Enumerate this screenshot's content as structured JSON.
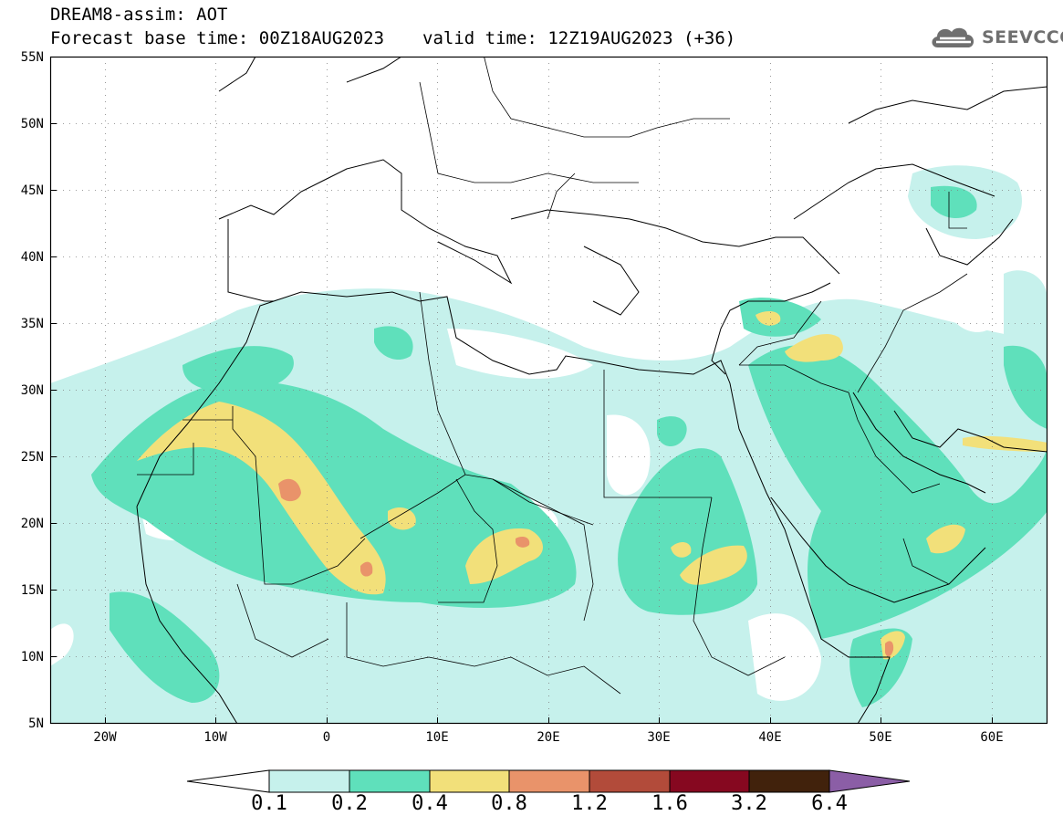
{
  "header": {
    "line1": "DREAM8-assim: AOT",
    "base_time": "Forecast base time: 00Z18AUG2023",
    "valid_time": "valid time: 12Z19AUG2023 (+36)"
  },
  "logo": {
    "text": "SEEVCCC",
    "icon": "cloud-logo-icon"
  },
  "map": {
    "lat_labels": [
      "55N",
      "50N",
      "45N",
      "40N",
      "35N",
      "30N",
      "25N",
      "20N",
      "15N",
      "10N",
      "5N"
    ],
    "lon_labels": [
      "20W",
      "10W",
      "0",
      "10E",
      "20E",
      "30E",
      "40E",
      "50E",
      "60E"
    ],
    "colors": {
      "c01": "#c6f1ec",
      "c02": "#5fe0bb",
      "c04": "#f2e07a",
      "c08": "#e9936a",
      "c12": "#b24b3a",
      "c16": "#860820",
      "c32": "#41220c",
      "c64": "#8b5ea6",
      "border": "#000000",
      "grid": "#808080"
    }
  },
  "colorbar": {
    "labels": [
      "0.1",
      "0.2",
      "0.4",
      "0.8",
      "1.2",
      "1.6",
      "3.2",
      "6.4"
    ],
    "colors": [
      "#c6f1ec",
      "#5fe0bb",
      "#f2e07a",
      "#e9936a",
      "#b24b3a",
      "#860820",
      "#41220c"
    ],
    "over_color": "#8b5ea6",
    "under_color": "#ffffff"
  }
}
